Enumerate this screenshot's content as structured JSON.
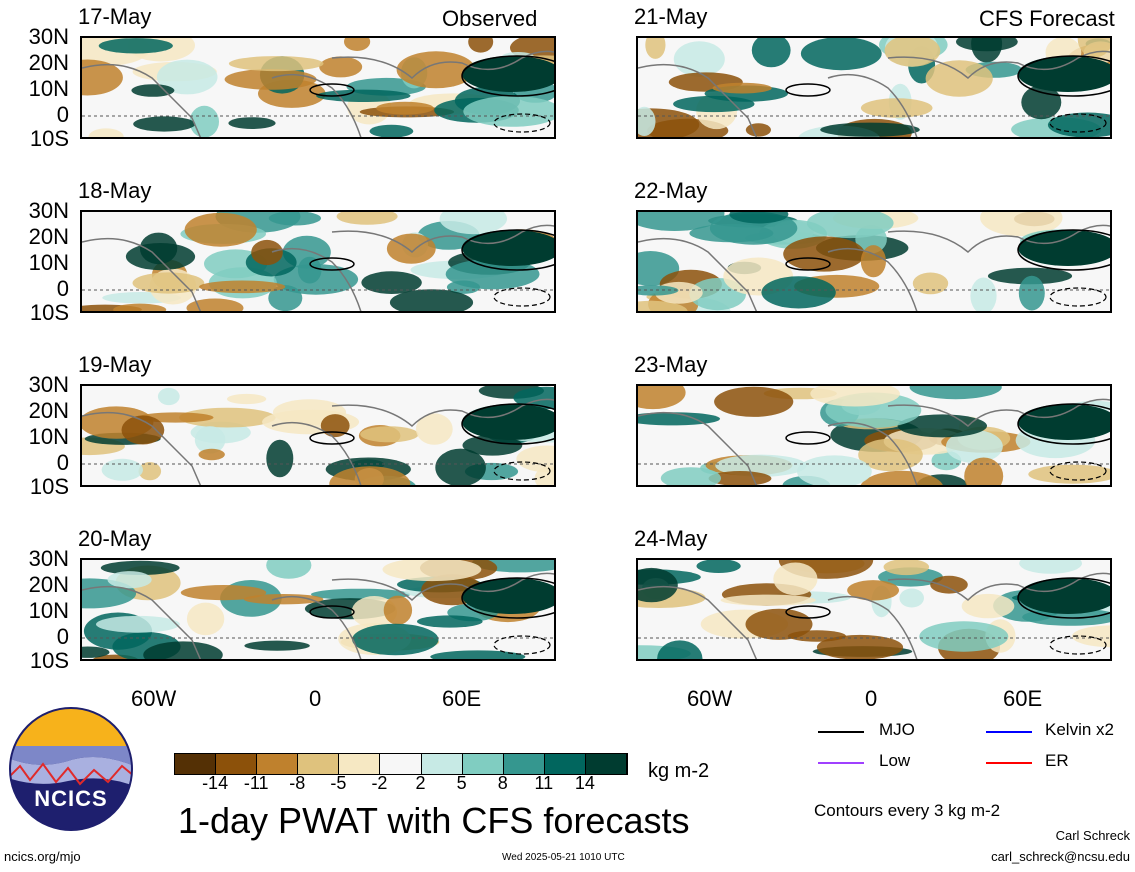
{
  "header": {
    "left_title": "Observed",
    "right_title": "CFS Forecast"
  },
  "panels": {
    "observed": [
      {
        "date": "17-May"
      },
      {
        "date": "18-May"
      },
      {
        "date": "19-May"
      },
      {
        "date": "20-May"
      }
    ],
    "forecast": [
      {
        "date": "21-May"
      },
      {
        "date": "22-May"
      },
      {
        "date": "23-May"
      },
      {
        "date": "24-May"
      }
    ]
  },
  "axes": {
    "lat_labels": [
      "30N",
      "20N",
      "10N",
      "0",
      "10S"
    ],
    "lon_labels": [
      "60W",
      "0",
      "60E"
    ]
  },
  "colorbar": {
    "labels": [
      "-14",
      "-11",
      "-8",
      "-5",
      "-2",
      "2",
      "5",
      "8",
      "11",
      "14"
    ],
    "colors": [
      "#543005",
      "#8c510a",
      "#bf812d",
      "#dfc27d",
      "#f6e8c3",
      "#f7f7f7",
      "#c7eae5",
      "#80cdc1",
      "#35978f",
      "#01665e",
      "#003c30"
    ],
    "units": "kg m-2"
  },
  "legend": {
    "mjo": "MJO",
    "kelvin": "Kelvin x2",
    "low": "Low",
    "er": "ER",
    "colors": {
      "mjo": "#000000",
      "kelvin": "#0000ff",
      "low": "#a040ff",
      "er": "#ff0000"
    }
  },
  "main_title": "1-day PWAT with CFS forecasts",
  "contour_note": "Contours every 3 kg m-2",
  "logo_text": "NCICS",
  "footer": {
    "url": "ncics.org/mjo",
    "timestamp": "Wed 2025-05-21 1010 UTC",
    "author": "Carl Schreck",
    "email": "carl_schreck@ncsu.edu"
  }
}
